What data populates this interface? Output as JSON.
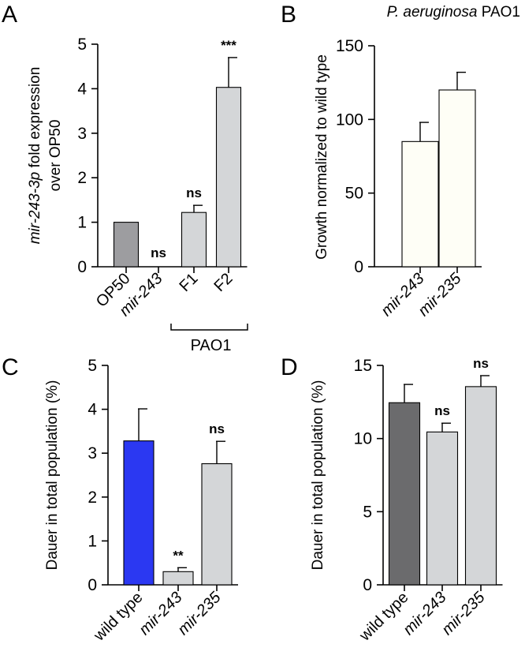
{
  "chart_data": [
    {
      "panel": "A",
      "type": "bar",
      "title": "",
      "ylabel_parts": [
        {
          "text": "mir-243-3p",
          "italic": true
        },
        {
          "text": " fold expression",
          "italic": false
        }
      ],
      "ylabel_line2": "over OP50",
      "ylim": [
        0,
        5
      ],
      "yticks": [
        "0",
        "1",
        "2",
        "3",
        "4",
        "5"
      ],
      "categories": [
        "OP50",
        "mir-243",
        "F1",
        "F2"
      ],
      "italic_categories": [
        false,
        true,
        false,
        false
      ],
      "values": [
        1.0,
        0,
        1.22,
        4.03
      ],
      "errors": [
        0,
        0,
        0.16,
        0.67
      ],
      "colors": [
        "#9d9da0",
        "#d4d6d8",
        "#d4d6d8",
        "#d4d6d8"
      ],
      "significance": [
        "",
        "ns",
        "ns",
        "***"
      ],
      "group_label": "PAO1"
    },
    {
      "panel": "B",
      "type": "bar",
      "title_parts": [
        {
          "text": "P. aeruginosa",
          "italic": true
        },
        {
          "text": " PAO1",
          "italic": false
        }
      ],
      "ylabel": "Growth normalized to wild type",
      "ylim": [
        0,
        150
      ],
      "yticks": [
        "0",
        "50",
        "100",
        "150"
      ],
      "categories": [
        "mir-243",
        "mir-235"
      ],
      "italic_categories": [
        true,
        true
      ],
      "values": [
        85,
        120
      ],
      "errors": [
        13,
        12
      ],
      "colors": [
        "#fefef6",
        "#fefef6"
      ],
      "significance": [
        "",
        ""
      ]
    },
    {
      "panel": "C",
      "type": "bar",
      "ylabel": "Dauer in total population (%)",
      "ylim": [
        0,
        5
      ],
      "yticks": [
        "0",
        "1",
        "2",
        "3",
        "4",
        "5"
      ],
      "categories": [
        "wild type",
        "mir-243",
        "mir-235"
      ],
      "italic_categories": [
        false,
        true,
        true
      ],
      "values": [
        3.28,
        0.3,
        2.76
      ],
      "errors": [
        0.73,
        0.09,
        0.51
      ],
      "colors": [
        "#2b38f2",
        "#d4d6d8",
        "#d4d6d8"
      ],
      "significance": [
        "",
        "**",
        "ns"
      ]
    },
    {
      "panel": "D",
      "type": "bar",
      "ylabel": "Dauer in total population (%)",
      "ylim": [
        0,
        15
      ],
      "yticks": [
        "0",
        "5",
        "10",
        "15"
      ],
      "categories": [
        "wild type",
        "mir-243",
        "mir-235"
      ],
      "italic_categories": [
        false,
        true,
        true
      ],
      "values": [
        12.45,
        10.45,
        13.55
      ],
      "errors": [
        1.25,
        0.6,
        0.75
      ],
      "colors": [
        "#6b6b6d",
        "#d4d6d8",
        "#d4d6d8"
      ],
      "significance": [
        "",
        "ns",
        "ns"
      ]
    }
  ]
}
